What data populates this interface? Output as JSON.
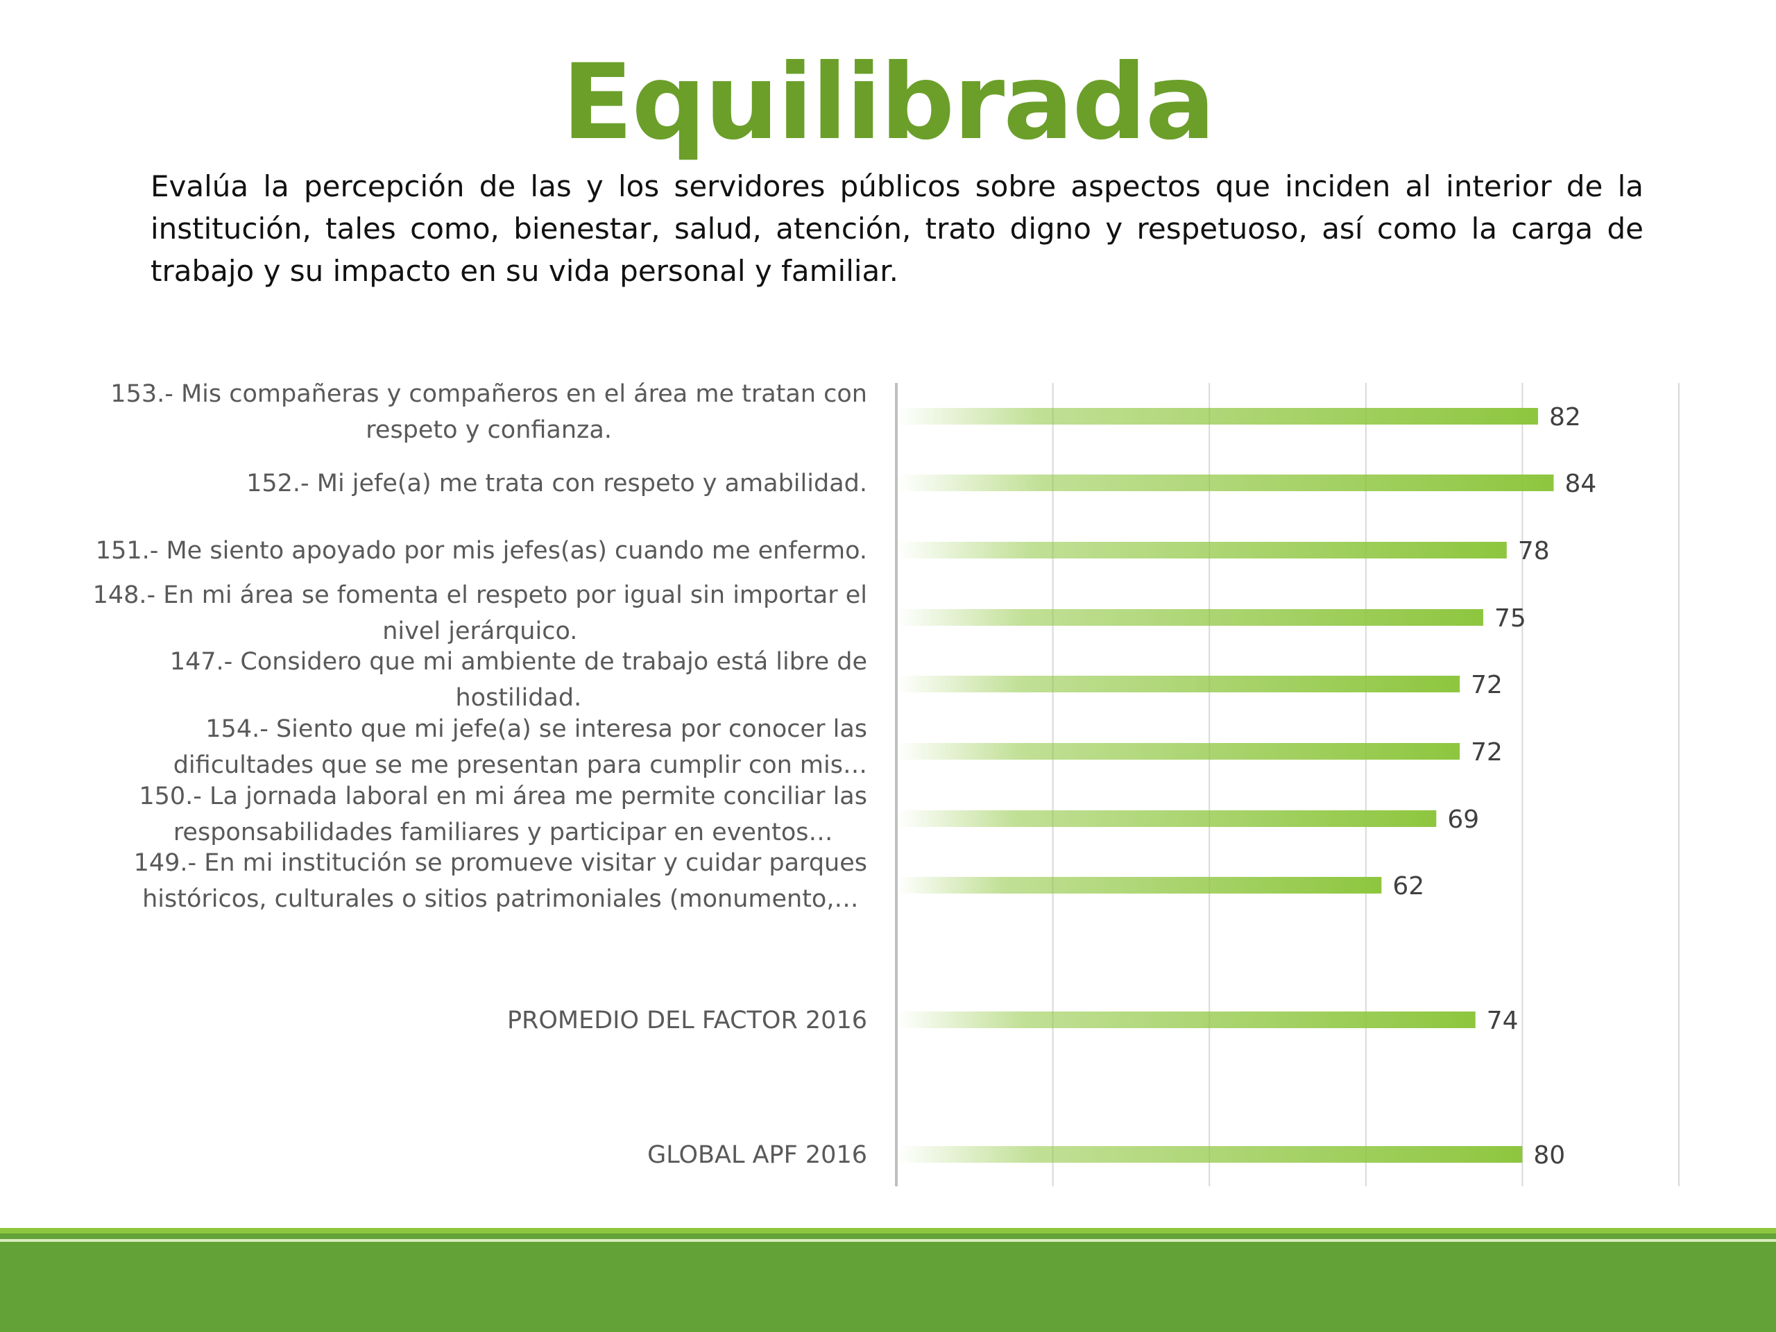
{
  "title": "Equilibrada",
  "description": "Evalúa la percepción de las y los servidores públicos sobre aspectos que inciden al interior de la institución, tales como, bienestar, salud, atención, trato digno y respetuoso, así como la carga de trabajo y su impacto en su vida personal y familiar.",
  "colors": {
    "title": "#6b9f2a",
    "bar": "#8ec63f",
    "footer": "#62a236",
    "footer_stripe": "#8ec63f",
    "gridline": "#d9d9d9"
  },
  "chart_data": {
    "type": "bar",
    "orientation": "horizontal",
    "categories": [
      [
        "153.- Mis compañeras y compañeros en el área me tratan con",
        "respeto y confianza."
      ],
      [
        "152.- Mi jefe(a) me trata con respeto y amabilidad."
      ],
      [
        "151.- Me siento apoyado por mis jefes(as) cuando me enfermo."
      ],
      [
        "148.- En mi área se fomenta el respeto por igual sin importar el",
        "nivel jerárquico."
      ],
      [
        "147.- Considero que mi ambiente de trabajo está libre de",
        "hostilidad."
      ],
      [
        "154.- Siento que mi jefe(a) se interesa por conocer las",
        "dificultades que se me presentan para cumplir con mis…"
      ],
      [
        "150.- La jornada laboral en mi área me permite conciliar las",
        "responsabilidades familiares y participar en eventos…"
      ],
      [
        "149.- En mi institución se promueve visitar y cuidar parques",
        "históricos, culturales o sitios patrimoniales (monumento,…"
      ],
      [
        "PROMEDIO DEL FACTOR   2016"
      ],
      [
        "GLOBAL APF   2016"
      ]
    ],
    "values": [
      82,
      84,
      78,
      75,
      72,
      72,
      69,
      62,
      74,
      80
    ],
    "xlim": [
      0,
      100
    ],
    "grid": true,
    "data_labels": true,
    "legend": "none"
  }
}
